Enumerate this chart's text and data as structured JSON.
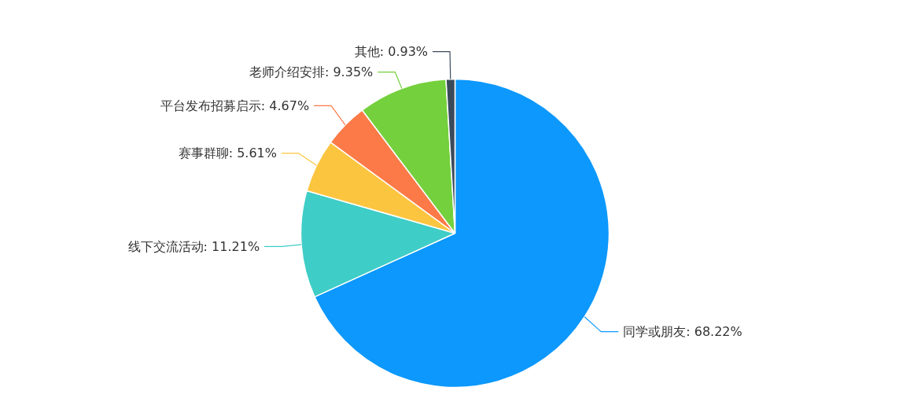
{
  "chart_data": {
    "type": "pie",
    "categories": [
      "同学或朋友",
      "线下交流活动",
      "赛事群聊",
      "平台发布招募启示",
      "老师介绍安排",
      "其他"
    ],
    "values": [
      68.22,
      11.21,
      5.61,
      4.67,
      9.35,
      0.93
    ],
    "value_labels": [
      "68.22%",
      "11.21%",
      "5.61%",
      "4.67%",
      "9.35%",
      "0.93%"
    ],
    "colors": [
      "#0c98fc",
      "#3fcdc7",
      "#fcc540",
      "#fb7a47",
      "#74d03c",
      "#3b4a5b"
    ]
  }
}
